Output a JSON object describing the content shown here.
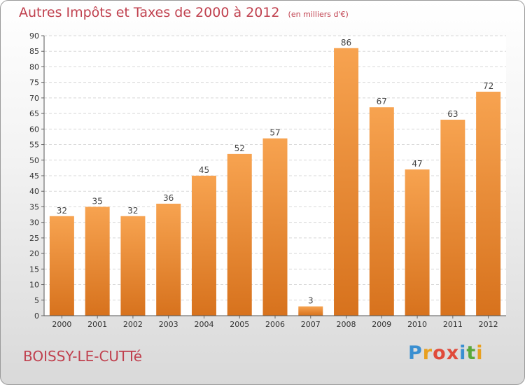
{
  "title": "Autres Impôts et Taxes de 2000 à 2012",
  "unit_note": "(en milliers d'€)",
  "commune": "BOISSY-LE-CUTTé",
  "logo": {
    "letters": [
      "P",
      "r",
      "o",
      "x",
      "i",
      "t",
      "i"
    ],
    "colors": [
      "#3a8fd1",
      "#e8a020",
      "#e04a3a",
      "#e04a3a",
      "#3a8fd1",
      "#5aa83a",
      "#e8a020"
    ]
  },
  "colors": {
    "bar_top": "#f7a350",
    "bar_bottom": "#d7721d",
    "text_accent": "#c0404e"
  },
  "chart_data": {
    "type": "bar",
    "title": "Autres Impôts et Taxes de 2000 à 2012",
    "categories": [
      "2000",
      "2001",
      "2002",
      "2003",
      "2004",
      "2005",
      "2006",
      "2007",
      "2008",
      "2009",
      "2010",
      "2011",
      "2012"
    ],
    "values": [
      32,
      35,
      32,
      36,
      45,
      52,
      57,
      3,
      86,
      67,
      47,
      63,
      72
    ],
    "ylim": [
      0,
      90
    ],
    "yticks": [
      0,
      5,
      10,
      15,
      20,
      25,
      30,
      35,
      40,
      45,
      50,
      55,
      60,
      65,
      70,
      75,
      80,
      85,
      90
    ],
    "grid": true,
    "data_labels": true
  }
}
